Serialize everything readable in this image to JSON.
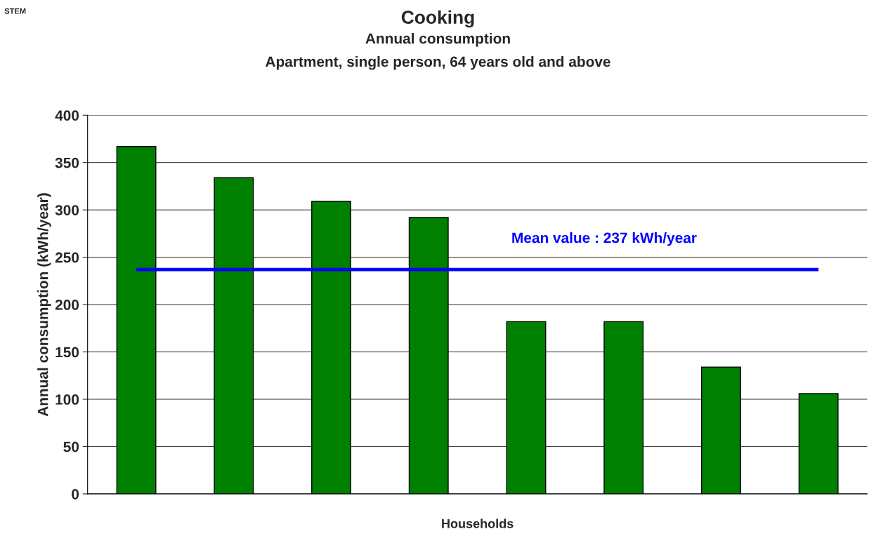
{
  "chart_data": {
    "type": "bar",
    "title": "Cooking",
    "subtitle": "Annual consumption\nApartment, single person, 64 years old and above",
    "xlabel": "Households",
    "ylabel": "Annual consumption (kWh/year)",
    "categories": [
      null,
      null,
      null,
      null,
      null,
      null,
      null,
      null
    ],
    "values": [
      367,
      334,
      309,
      292,
      182,
      182,
      134,
      106
    ],
    "color": "#008000",
    "ylim": [
      0,
      400
    ],
    "yticks": [
      0,
      50,
      100,
      150,
      200,
      250,
      300,
      350,
      400
    ],
    "grid": "y",
    "legend": false,
    "ref_lines": [
      {
        "axis": "y",
        "value": 237,
        "label": "Mean value : 237 kWh/year",
        "color": "#0000ff"
      }
    ],
    "annotations": [
      "STEM"
    ]
  }
}
